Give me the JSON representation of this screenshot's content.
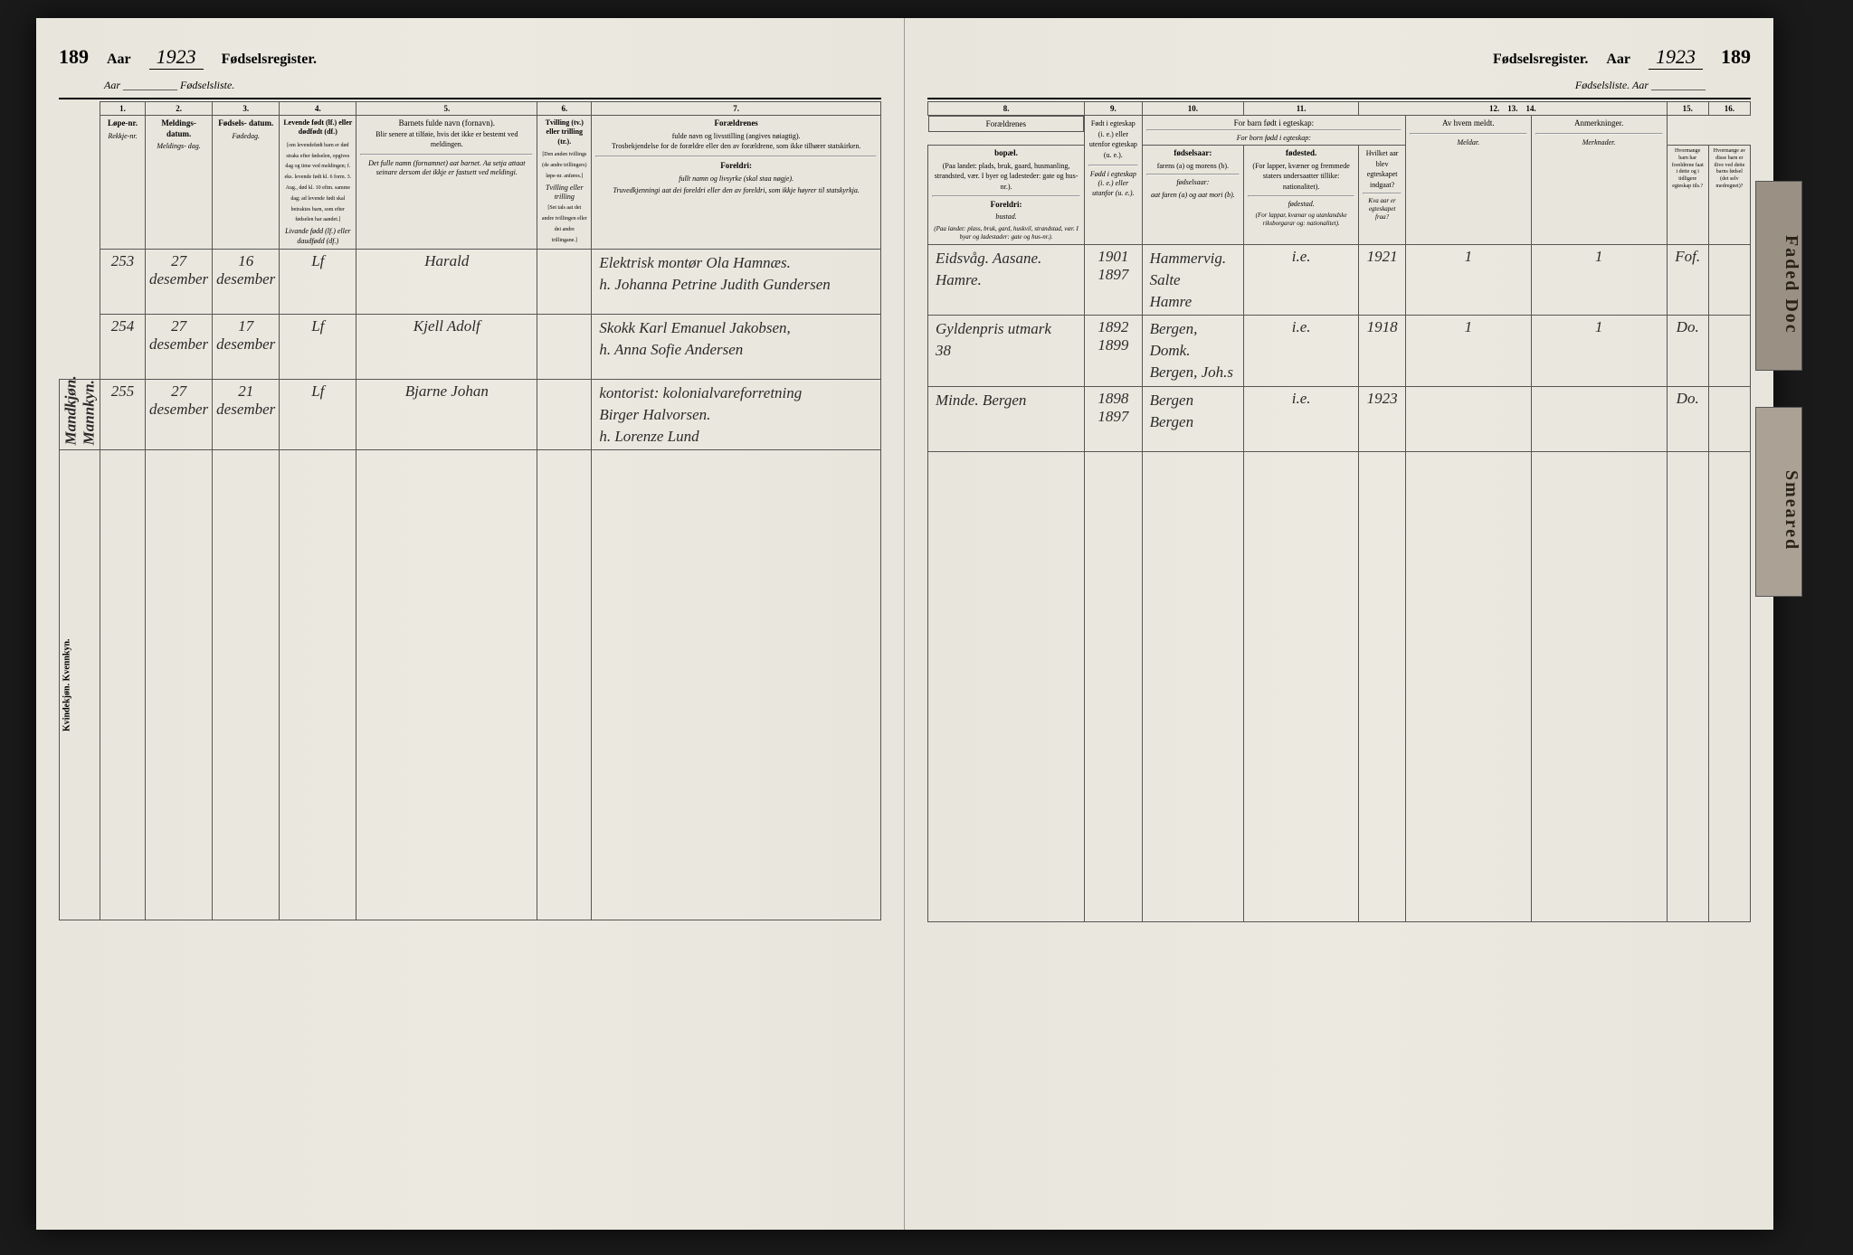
{
  "year": "1923",
  "page_number": "189",
  "register_title": "Fødselsregister.",
  "sublist_label_left": "Aar __________ Fødselsliste.",
  "sublist_label_right": "Fødselsliste.   Aar __________",
  "tabs": {
    "tab1": "Faded Doc",
    "tab2": "Smeared"
  },
  "left_columns": {
    "nums": [
      "1.",
      "2.",
      "3.",
      "4.",
      "5.",
      "6.",
      "7."
    ],
    "c1": {
      "l1": "Løpe-nr.",
      "l2": "Rekkje-nr."
    },
    "c2": {
      "l1": "Meldings-\ndatum.",
      "l2": "Meldings-\ndag."
    },
    "c3": {
      "l1": "Fødsels-\ndatum.",
      "l2": "Fødedag."
    },
    "c4": {
      "l1": "Levende født (lf.) eller dødfødt (df.)",
      "note": "[om levendefødt barn er død straks efter fødselen, opgives dag og time ved meldingen; f. eks. levende født kl. 6 form. 3. Aug., død kl. 10 eftm. samme dag; ad levende født skal betraktes barn, som efter fødselen har aandet.]",
      "l2": "Livande fødd (lf.) eller daudfødd (df.)"
    },
    "c5": {
      "l1": "Barnets fulde navn (fornavn).",
      "l2": "Blir senere at tilføie, hvis det ikke er bestemt ved meldingen.",
      "l3": "Det fulle namn (fornamnet) aat barnet. Aa setja attaat seinare dersom det ikkje er fastsett ved meldingi."
    },
    "c6": {
      "l1": "Tvilling (tv.) eller trilling (tr.).",
      "note": "[Den anden tvillings (de andre trillingers) løpe-nr. anføres.]",
      "l2": "Tvilling eller trilling",
      "note2": "[Set tals aat det andre tvillingen eller dei andre trillingane.]"
    },
    "c7": {
      "title": "Forældrenes",
      "l1": "fulde navn og livsstilling (angives nøiagtig).",
      "l2": "Trosbekjendelse for de forældre eller den av forældrene, som ikke tilhører statskirken.",
      "subtitle": "Foreldri:",
      "l3": "fullt namn og livsyrke (skal staa nøgje).",
      "l4": "Truvedkjenningi aat dei foreldri eller den av foreldri, som ikkje høyrer til statskyrkja."
    }
  },
  "right_columns": {
    "nums": [
      "8.",
      "9.",
      "10.",
      "11.",
      "12.",
      "13.",
      "14.",
      "15.",
      "16."
    ],
    "c8_title": "Forældrenes",
    "c8": {
      "l1": "bopæl.",
      "l2": "(Paa landet: plads, bruk, gaard, husmanling, strandsted, vær. I byer og ladesteder: gate og hus-nr.).",
      "sub": "Foreldri:",
      "l3": "bustad.",
      "l4": "(Paa landet: plass, bruk, gard, huskvil, strandstad, vær. I byar og ladestader: gate og hus-nr.)."
    },
    "c9": {
      "l1": "fødselsaar:",
      "l2": "farens (a) og morens (b).",
      "l3": "fødselsaar:",
      "l4": "aat faren (a) og aat mori (b)."
    },
    "c10": {
      "l1": "fødested.",
      "l2": "(For lapper, kvæner og fremmede staters undersaatter tillike: nationalitet).",
      "l3": "fødestad.",
      "l4": "(For lappar, kvænar og utanlandske riksborgarar og: nationalitet)."
    },
    "c11": {
      "l1": "Født i egteskap (i. e.) eller utenfor egteskap (u. e.).",
      "l2": "Fødd i egteskap (i. e.) eller utanfor (u. e.)."
    },
    "c12_group": "For barn født i egteskap:",
    "c12_group2": "For born fødd i egteskap:",
    "c12": {
      "l1": "Hvilket aar blev egteskapet indgaat?",
      "l2": "Kva aar er egteskapet fraa?"
    },
    "c13": {
      "l1": "Hvormange barn har foreldrene faat i dette og i tidligere egteskap tils.?"
    },
    "c14": {
      "l1": "Hvormange av disse barn er ilive ved dette barns fødsel (det selv medregnet)?"
    },
    "c15": {
      "l1": "Av hvem meldt.",
      "l2": "Meldar."
    },
    "c16": {
      "l1": "Anmerkninger.",
      "l2": "Merknader."
    }
  },
  "side_labels": {
    "male": "Mandkjøn.\nMannkyn.",
    "female": "Kvindekjøn.\nKvennkyn."
  },
  "rows": [
    {
      "num": "253",
      "meld": "27\ndesember",
      "fod": "16\ndesember",
      "lf": "Lf",
      "name": "Harald",
      "tv": "",
      "parents": "Elektrisk montør Ola Hamnæs.\nh. Johanna Petrine Judith Gundersen",
      "bopael": "Eidsvåg.  Aasane.\nHamre.",
      "years": "1901\n1897",
      "birthplace": "Hammervig. Salte\nHamre",
      "ie": "i.e.",
      "marr_year": "1921",
      "c13": "1",
      "c14": "1",
      "meldt": "Fof.",
      "anm": ""
    },
    {
      "num": "254",
      "meld": "27\ndesember",
      "fod": "17\ndesember",
      "lf": "Lf",
      "name": "Kjell Adolf",
      "tv": "",
      "parents": "Skokk Karl Emanuel Jakobsen,\nh. Anna Sofie Andersen",
      "bopael": "Gyldenpris utmark\n38",
      "years": "1892\n1899",
      "birthplace": "Bergen, Domk.\nBergen, Joh.s",
      "ie": "i.e.",
      "marr_year": "1918",
      "c13": "1",
      "c14": "1",
      "meldt": "Do.",
      "anm": ""
    },
    {
      "num": "255",
      "meld": "27\ndesember",
      "fod": "21\ndesember",
      "lf": "Lf",
      "name": "Bjarne Johan",
      "tv": "",
      "parents": "kontorist: kolonialvareforretning\nBirger Halvorsen.\nh. Lorenze Lund",
      "bopael": "Minde.  Bergen",
      "years": "1898\n1897",
      "birthplace": "Bergen\nBergen",
      "ie": "i.e.",
      "marr_year": "1923",
      "c13": "",
      "c14": "",
      "meldt": "Do.",
      "anm": ""
    }
  ]
}
